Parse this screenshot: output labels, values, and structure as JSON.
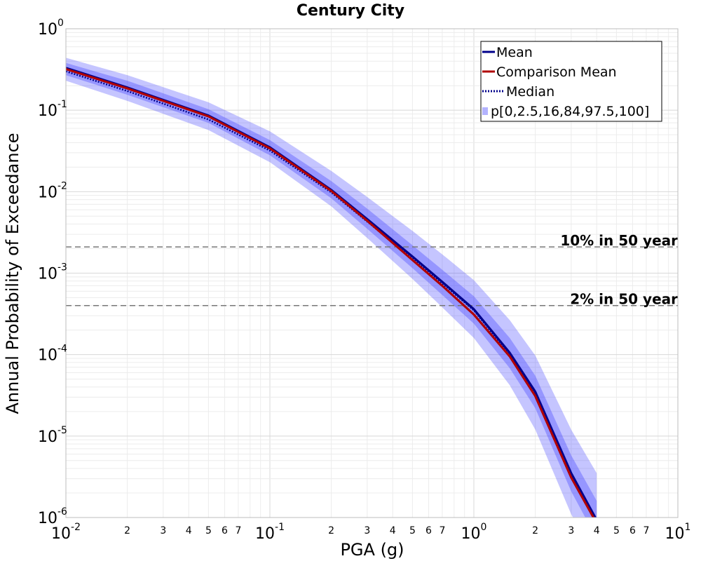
{
  "chart_data": {
    "type": "line",
    "title": "Century City",
    "xlabel": "PGA (g)",
    "ylabel": "Annual Probability of Exceedance",
    "xscale": "log",
    "yscale": "log",
    "xlim": [
      0.01,
      10
    ],
    "ylim": [
      1e-06,
      1
    ],
    "grid": true,
    "legend_position": "top-right",
    "x_major_ticks": [
      {
        "base": "10",
        "exp": "-2"
      },
      {
        "base": "10",
        "exp": "-1"
      },
      {
        "base": "10",
        "exp": "0"
      },
      {
        "base": "10",
        "exp": "1"
      }
    ],
    "x_minor_ticks": [
      "2",
      "3",
      "4",
      "5",
      "6",
      "7"
    ],
    "y_major_ticks": [
      {
        "base": "10",
        "exp": "0"
      },
      {
        "base": "10",
        "exp": "-1"
      },
      {
        "base": "10",
        "exp": "-2"
      },
      {
        "base": "10",
        "exp": "-3"
      },
      {
        "base": "10",
        "exp": "-4"
      },
      {
        "base": "10",
        "exp": "-5"
      },
      {
        "base": "10",
        "exp": "-6"
      }
    ],
    "x": [
      0.01,
      0.02,
      0.05,
      0.1,
      0.2,
      0.3,
      0.5,
      0.7,
      1.0,
      1.5,
      2.0,
      3.0,
      4.0
    ],
    "series": [
      {
        "name": "Mean",
        "color": "#00008b",
        "style": "solid",
        "values": [
          0.33,
          0.19,
          0.086,
          0.035,
          0.0105,
          0.0046,
          0.0016,
          0.00078,
          0.00036,
          0.000105,
          3.5e-05,
          3.5e-06,
          9.3e-07
        ]
      },
      {
        "name": "Comparison Mean",
        "color": "#b00000",
        "style": "solid",
        "values": [
          0.32,
          0.185,
          0.084,
          0.034,
          0.0102,
          0.0044,
          0.00145,
          0.0007,
          0.00031,
          9.5e-05,
          3.1e-05,
          3.1e-06,
          8.5e-07
        ]
      },
      {
        "name": "Median",
        "color": "#00008b",
        "style": "dotted",
        "values": [
          0.3,
          0.172,
          0.077,
          0.032,
          0.0098,
          0.0043,
          0.00152,
          0.00075,
          0.00035,
          0.0001,
          3.4e-05,
          3.4e-06,
          9e-07
        ]
      }
    ],
    "band": {
      "name": "p[0,2.5,16,84,97.5,100]",
      "color": "#4040ff",
      "outer_low": [
        0.23,
        0.13,
        0.057,
        0.023,
        0.0066,
        0.0027,
        0.00085,
        0.00038,
        0.00016,
        4.2e-05,
        1.2e-05,
        1.1e-06,
        2.8e-07
      ],
      "outer_high": [
        0.44,
        0.27,
        0.125,
        0.055,
        0.018,
        0.0086,
        0.0033,
        0.0017,
        0.00082,
        0.000265,
        9.75e-05,
        1.2e-05,
        3.5e-06
      ],
      "inner_low": [
        0.27,
        0.155,
        0.07,
        0.028,
        0.0083,
        0.0035,
        0.00115,
        0.00054,
        0.00024,
        6.8e-05,
        2.2e-05,
        2.1e-06,
        5.5e-07
      ],
      "inner_high": [
        0.38,
        0.23,
        0.103,
        0.043,
        0.0135,
        0.0062,
        0.0022,
        0.0011,
        0.00052,
        0.00016,
        5.5e-05,
        5.8e-06,
        1.6e-06
      ]
    },
    "reference_lines": [
      {
        "label": "10% in 50 year",
        "y": 0.0021
      },
      {
        "label": "2% in 50 year",
        "y": 0.0004
      }
    ]
  }
}
